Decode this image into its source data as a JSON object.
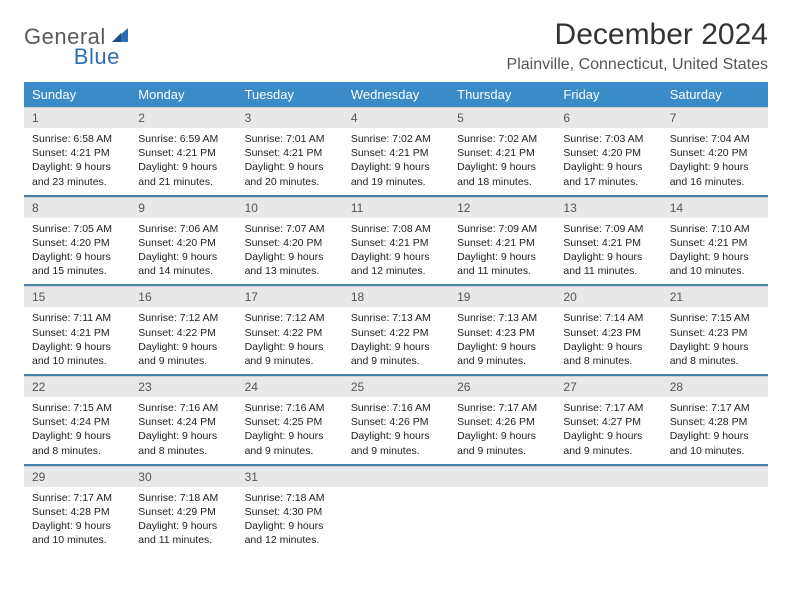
{
  "brand": {
    "word1": "General",
    "word2": "Blue"
  },
  "title": "December 2024",
  "location": "Plainville, Connecticut, United States",
  "colors": {
    "header_bg": "#3b8bc9",
    "header_fg": "#ffffff",
    "row_divider": "#4a7fa8",
    "daynum_bg": "#e8e8e8",
    "logo_gray": "#5a5a5a",
    "logo_blue": "#2d6fb5"
  },
  "weekdays": [
    "Sunday",
    "Monday",
    "Tuesday",
    "Wednesday",
    "Thursday",
    "Friday",
    "Saturday"
  ],
  "days": [
    {
      "n": "1",
      "sr": "6:58 AM",
      "ss": "4:21 PM",
      "dl": "9 hours and 23 minutes."
    },
    {
      "n": "2",
      "sr": "6:59 AM",
      "ss": "4:21 PM",
      "dl": "9 hours and 21 minutes."
    },
    {
      "n": "3",
      "sr": "7:01 AM",
      "ss": "4:21 PM",
      "dl": "9 hours and 20 minutes."
    },
    {
      "n": "4",
      "sr": "7:02 AM",
      "ss": "4:21 PM",
      "dl": "9 hours and 19 minutes."
    },
    {
      "n": "5",
      "sr": "7:02 AM",
      "ss": "4:21 PM",
      "dl": "9 hours and 18 minutes."
    },
    {
      "n": "6",
      "sr": "7:03 AM",
      "ss": "4:20 PM",
      "dl": "9 hours and 17 minutes."
    },
    {
      "n": "7",
      "sr": "7:04 AM",
      "ss": "4:20 PM",
      "dl": "9 hours and 16 minutes."
    },
    {
      "n": "8",
      "sr": "7:05 AM",
      "ss": "4:20 PM",
      "dl": "9 hours and 15 minutes."
    },
    {
      "n": "9",
      "sr": "7:06 AM",
      "ss": "4:20 PM",
      "dl": "9 hours and 14 minutes."
    },
    {
      "n": "10",
      "sr": "7:07 AM",
      "ss": "4:20 PM",
      "dl": "9 hours and 13 minutes."
    },
    {
      "n": "11",
      "sr": "7:08 AM",
      "ss": "4:21 PM",
      "dl": "9 hours and 12 minutes."
    },
    {
      "n": "12",
      "sr": "7:09 AM",
      "ss": "4:21 PM",
      "dl": "9 hours and 11 minutes."
    },
    {
      "n": "13",
      "sr": "7:09 AM",
      "ss": "4:21 PM",
      "dl": "9 hours and 11 minutes."
    },
    {
      "n": "14",
      "sr": "7:10 AM",
      "ss": "4:21 PM",
      "dl": "9 hours and 10 minutes."
    },
    {
      "n": "15",
      "sr": "7:11 AM",
      "ss": "4:21 PM",
      "dl": "9 hours and 10 minutes."
    },
    {
      "n": "16",
      "sr": "7:12 AM",
      "ss": "4:22 PM",
      "dl": "9 hours and 9 minutes."
    },
    {
      "n": "17",
      "sr": "7:12 AM",
      "ss": "4:22 PM",
      "dl": "9 hours and 9 minutes."
    },
    {
      "n": "18",
      "sr": "7:13 AM",
      "ss": "4:22 PM",
      "dl": "9 hours and 9 minutes."
    },
    {
      "n": "19",
      "sr": "7:13 AM",
      "ss": "4:23 PM",
      "dl": "9 hours and 9 minutes."
    },
    {
      "n": "20",
      "sr": "7:14 AM",
      "ss": "4:23 PM",
      "dl": "9 hours and 8 minutes."
    },
    {
      "n": "21",
      "sr": "7:15 AM",
      "ss": "4:23 PM",
      "dl": "9 hours and 8 minutes."
    },
    {
      "n": "22",
      "sr": "7:15 AM",
      "ss": "4:24 PM",
      "dl": "9 hours and 8 minutes."
    },
    {
      "n": "23",
      "sr": "7:16 AM",
      "ss": "4:24 PM",
      "dl": "9 hours and 8 minutes."
    },
    {
      "n": "24",
      "sr": "7:16 AM",
      "ss": "4:25 PM",
      "dl": "9 hours and 9 minutes."
    },
    {
      "n": "25",
      "sr": "7:16 AM",
      "ss": "4:26 PM",
      "dl": "9 hours and 9 minutes."
    },
    {
      "n": "26",
      "sr": "7:17 AM",
      "ss": "4:26 PM",
      "dl": "9 hours and 9 minutes."
    },
    {
      "n": "27",
      "sr": "7:17 AM",
      "ss": "4:27 PM",
      "dl": "9 hours and 9 minutes."
    },
    {
      "n": "28",
      "sr": "7:17 AM",
      "ss": "4:28 PM",
      "dl": "9 hours and 10 minutes."
    },
    {
      "n": "29",
      "sr": "7:17 AM",
      "ss": "4:28 PM",
      "dl": "9 hours and 10 minutes."
    },
    {
      "n": "30",
      "sr": "7:18 AM",
      "ss": "4:29 PM",
      "dl": "9 hours and 11 minutes."
    },
    {
      "n": "31",
      "sr": "7:18 AM",
      "ss": "4:30 PM",
      "dl": "9 hours and 12 minutes."
    }
  ],
  "labels": {
    "sunrise": "Sunrise:",
    "sunset": "Sunset:",
    "daylight": "Daylight:"
  }
}
